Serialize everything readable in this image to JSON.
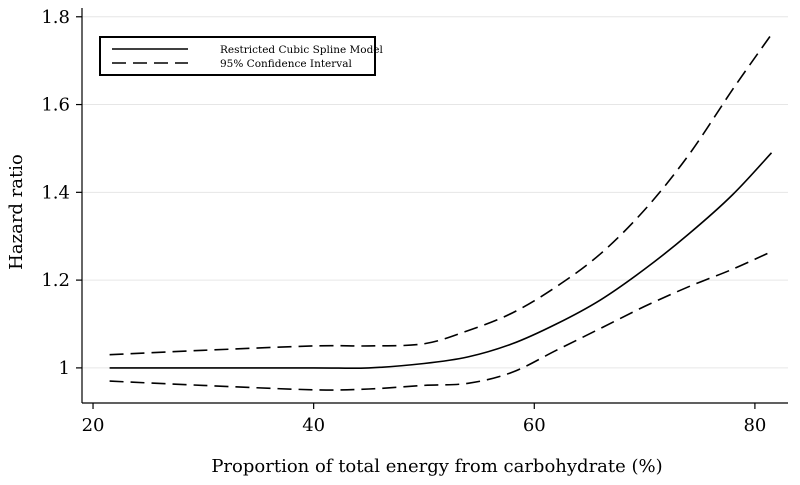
{
  "chart_data": {
    "type": "line",
    "title": "",
    "xlabel": "Proportion of total energy from carbohydrate (%)",
    "ylabel": "Hazard ratio",
    "xlim": [
      19,
      83
    ],
    "ylim": [
      0.92,
      1.82
    ],
    "xticks": [
      20,
      40,
      60,
      80
    ],
    "xtick_labels": [
      "20",
      "40",
      "60",
      "80"
    ],
    "yticks": [
      1.0,
      1.2,
      1.4,
      1.6,
      1.8
    ],
    "ytick_labels": [
      "1",
      "1.2",
      "1.4",
      "1.6",
      "1.8"
    ],
    "grid": "horizontal",
    "legend_position": "top-left",
    "series": [
      {
        "name": "Restricted Cubic Spline Model",
        "style": "solid",
        "x": [
          21.5,
          30,
          40,
          45,
          50,
          54,
          58,
          62,
          66,
          70,
          74,
          78,
          81.5
        ],
        "y": [
          1.0,
          1.0,
          1.0,
          1.0,
          1.01,
          1.025,
          1.055,
          1.1,
          1.155,
          1.225,
          1.305,
          1.395,
          1.49
        ]
      },
      {
        "name": "95% Confidence Interval",
        "style": "dashed",
        "x": [
          21.5,
          30,
          40,
          45,
          50,
          54,
          58,
          62,
          66,
          70,
          74,
          78,
          81.5
        ],
        "y": [
          1.03,
          1.04,
          1.05,
          1.05,
          1.055,
          1.085,
          1.125,
          1.185,
          1.26,
          1.36,
          1.485,
          1.635,
          1.76
        ]
      },
      {
        "name": "95% Confidence Interval (lower)",
        "style": "dashed",
        "legend": false,
        "x": [
          21.5,
          30,
          40,
          45,
          50,
          54,
          58,
          62,
          66,
          70,
          74,
          78,
          81.5
        ],
        "y": [
          0.97,
          0.96,
          0.95,
          0.952,
          0.96,
          0.965,
          0.99,
          1.04,
          1.09,
          1.14,
          1.185,
          1.225,
          1.265
        ]
      }
    ],
    "colors": {
      "line": "#000000",
      "grid": "#e6e6e6",
      "axis": "#000000"
    }
  }
}
